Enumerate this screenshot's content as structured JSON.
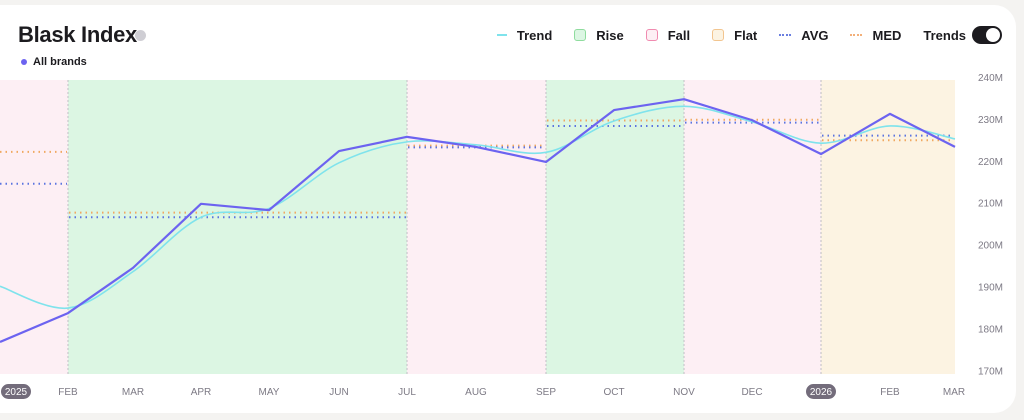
{
  "header": {
    "title": "Blask Index",
    "info_icon": "info-icon",
    "series_label": "All brands",
    "series_color": "#6c63f0"
  },
  "legend": {
    "items": [
      {
        "label": "Trend",
        "kind": "line",
        "color": "#7fe3ec"
      },
      {
        "label": "Rise",
        "kind": "box",
        "color": "#8fdc9e",
        "fill": "#dcf6e3"
      },
      {
        "label": "Fall",
        "kind": "box",
        "color": "#f08bb0",
        "fill": "#fdeff4"
      },
      {
        "label": "Flat",
        "kind": "box",
        "color": "#f2c58f",
        "fill": "#fcf3e2"
      },
      {
        "label": "AVG",
        "kind": "dot",
        "color": "#6b7fe0"
      },
      {
        "label": "MED",
        "kind": "dot",
        "color": "#f3b07a"
      }
    ],
    "toggle_label": "Trends",
    "toggle_on": true
  },
  "colors": {
    "main_line": "#6c63f0",
    "trend_line": "#7fe3ec",
    "avg": "#5b74e0",
    "med": "#f0a860",
    "rise_bg": "#dcf6e3",
    "fall_bg": "#fdeff4",
    "flat_bg": "#fcf3e2",
    "divider": "#c9c7cc"
  },
  "chart_data": {
    "type": "line",
    "title": "Blask Index",
    "series_name": "All brands",
    "x": [
      "2025",
      "FEB",
      "MAR",
      "APR",
      "MAY",
      "JUN",
      "JUL",
      "AUG",
      "SEP",
      "OCT",
      "NOV",
      "DEC",
      "2026",
      "FEB",
      "MAR"
    ],
    "series": [
      {
        "name": "All brands",
        "values": [
          176.7,
          183.6,
          194.4,
          209.7,
          208.2,
          222.3,
          225.7,
          223.3,
          219.7,
          232.1,
          234.7,
          229.7,
          221.6,
          231.2,
          223.3
        ]
      },
      {
        "name": "Trend",
        "values": [
          190,
          184.8,
          193.5,
          206.5,
          208.6,
          219.5,
          224.5,
          223.8,
          222,
          229.5,
          233,
          229.3,
          224.2,
          228.3,
          225.2
        ]
      }
    ],
    "segments": [
      {
        "type": "Fall",
        "from": 0,
        "to": 1,
        "avg": 214.5,
        "med": 222.1
      },
      {
        "type": "Rise",
        "from": 1,
        "to": 6,
        "avg": 206.5,
        "med": 207.6
      },
      {
        "type": "Fall",
        "from": 6,
        "to": 8,
        "avg": 223.2,
        "med": 223.6
      },
      {
        "type": "Rise",
        "from": 8,
        "to": 10,
        "avg": 228.3,
        "med": 229.6
      },
      {
        "type": "Fall",
        "from": 10,
        "to": 12,
        "avg": 229.1,
        "med": 229.8
      },
      {
        "type": "Flat",
        "from": 12,
        "to": 14,
        "avg": 226.0,
        "med": 224.9
      }
    ],
    "ylabel": "",
    "xlabel": "",
    "y_ticks": [
      "240M",
      "230M",
      "220M",
      "210M",
      "200M",
      "190M",
      "180M",
      "170M"
    ],
    "ylim": [
      170,
      240
    ],
    "grid": false,
    "legend_position": "top-right",
    "year_markers": [
      "2025",
      "2026"
    ]
  }
}
